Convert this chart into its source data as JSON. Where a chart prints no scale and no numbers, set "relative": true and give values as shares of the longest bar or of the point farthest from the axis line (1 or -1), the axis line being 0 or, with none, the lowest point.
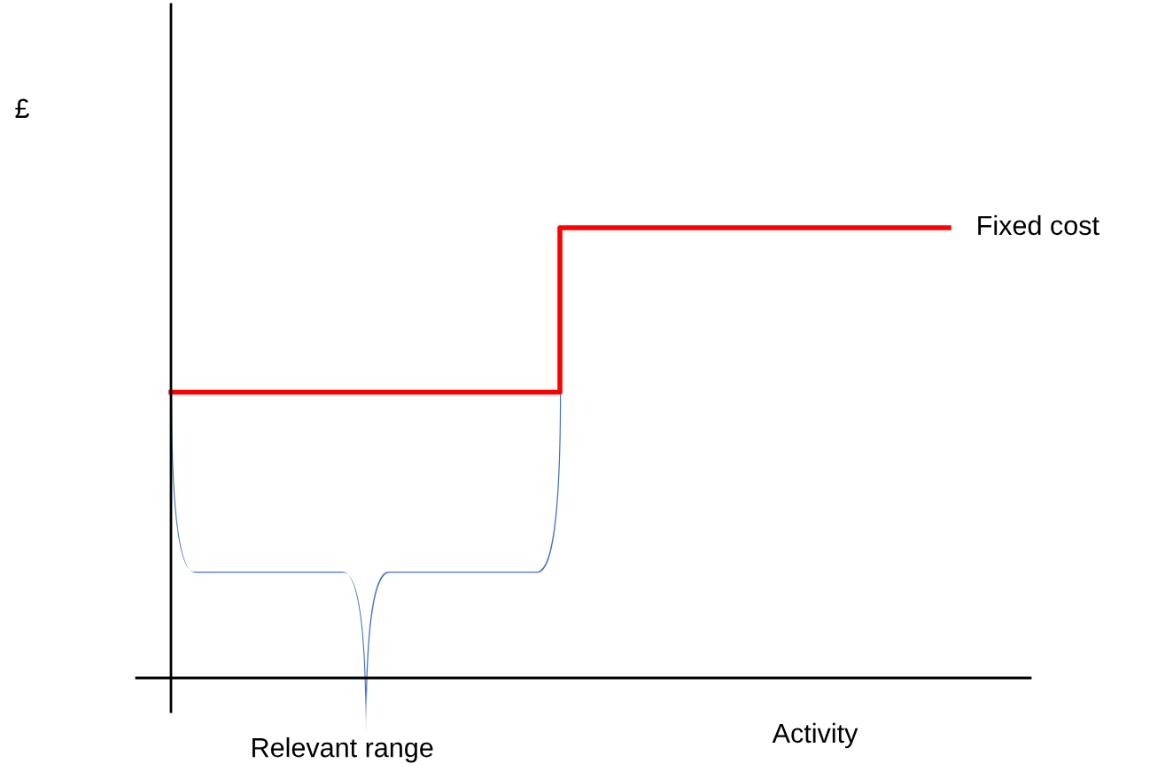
{
  "chart_data": {
    "type": "step",
    "relative": true,
    "xlabel": "Activity",
    "categories": [
      null,
      null,
      null
    ],
    "series": [
      {
        "name": "Fixed cost",
        "color": "#ff0000",
        "values": [
          0.635,
          1,
          1
        ]
      }
    ],
    "annotations": [
      "£",
      "Relevant range"
    ],
    "legend": false,
    "marker": "none",
    "line_style": "solid"
  }
}
